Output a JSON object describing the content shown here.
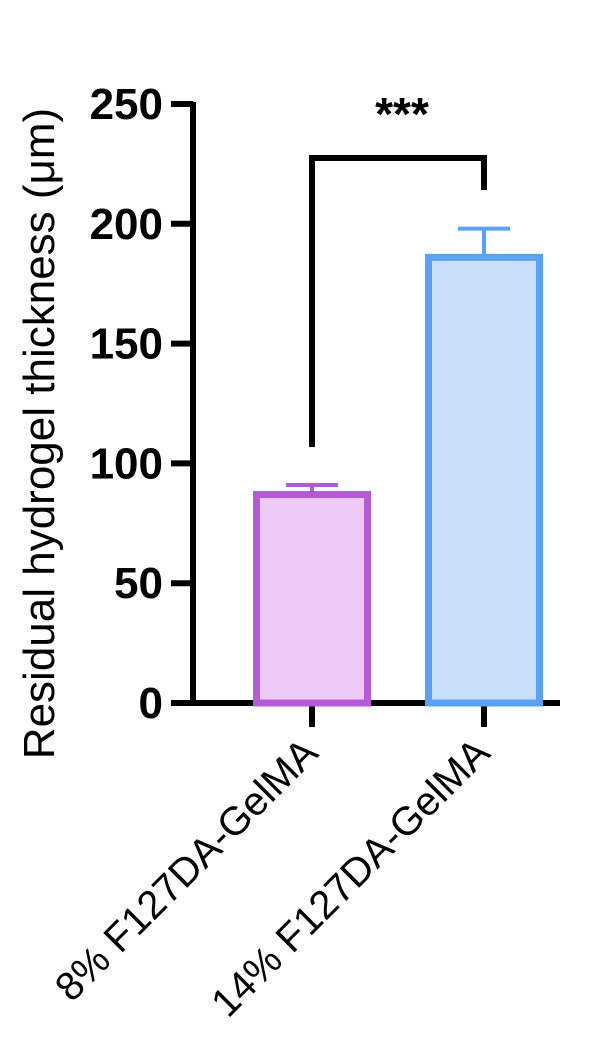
{
  "chart_data": {
    "type": "bar",
    "title": "",
    "xlabel": "",
    "ylabel": "Residual hydrogel thickness (μm)",
    "ylim": [
      0,
      250
    ],
    "yticks": [
      0,
      50,
      100,
      150,
      200,
      250
    ],
    "categories": [
      "8% F127DA-GelMA",
      "14% F127DA-GelMA"
    ],
    "values": [
      87,
      186
    ],
    "errors": [
      4,
      12
    ],
    "bar_fill_colors": [
      "#eecbf6",
      "#c9def8"
    ],
    "bar_edge_colors": [
      "#b35bd6",
      "#5aa2f8"
    ],
    "significance": {
      "label": "***",
      "between": [
        0,
        1
      ]
    },
    "grid": false,
    "legend": "none"
  }
}
